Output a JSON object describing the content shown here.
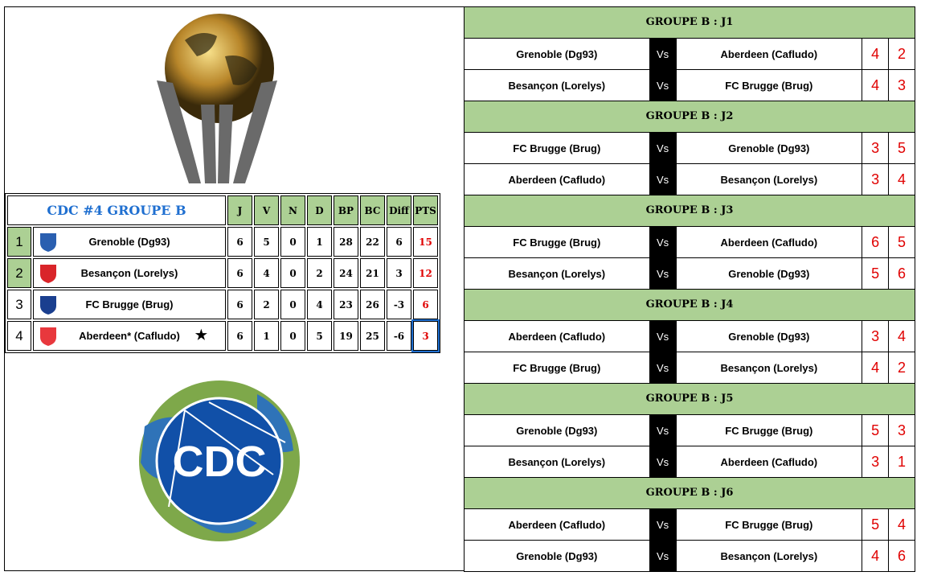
{
  "standings": {
    "title": "CDC #4 GROUPE B",
    "headers": [
      "J",
      "V",
      "N",
      "D",
      "BP",
      "BC",
      "Diff",
      "PTS"
    ],
    "rows": [
      {
        "rank": "1",
        "team": "Grenoble (Dg93)",
        "stats": [
          "6",
          "5",
          "0",
          "1",
          "28",
          "22",
          "6",
          "15"
        ],
        "qualified": true,
        "logo_color": "#2a5fb0"
      },
      {
        "rank": "2",
        "team": "Besançon (Lorelys)",
        "stats": [
          "6",
          "4",
          "0",
          "2",
          "24",
          "21",
          "3",
          "12"
        ],
        "qualified": true,
        "logo_color": "#d9252a"
      },
      {
        "rank": "3",
        "team": "FC Brugge (Brug)",
        "stats": [
          "6",
          "2",
          "0",
          "4",
          "23",
          "26",
          "-3",
          "6"
        ],
        "qualified": false,
        "logo_color": "#1a3f8f"
      },
      {
        "rank": "4",
        "team": "Aberdeen* (Cafludo)",
        "stats": [
          "6",
          "1",
          "0",
          "5",
          "19",
          "25",
          "-6",
          "3"
        ],
        "qualified": false,
        "logo_color": "#e8383d",
        "star": "★"
      }
    ]
  },
  "logo_text": "CDC",
  "matchdays": [
    {
      "title": "GROUPE B : J1",
      "matches": [
        {
          "home": "Grenoble (Dg93)",
          "away": "Aberdeen (Cafludo)",
          "hs": "4",
          "as": "2"
        },
        {
          "home": "Besançon (Lorelys)",
          "away": "FC Brugge (Brug)",
          "hs": "4",
          "as": "3"
        }
      ]
    },
    {
      "title": "GROUPE B : J2",
      "matches": [
        {
          "home": "FC Brugge (Brug)",
          "away": "Grenoble (Dg93)",
          "hs": "3",
          "as": "5"
        },
        {
          "home": "Aberdeen (Cafludo)",
          "away": "Besançon (Lorelys)",
          "hs": "3",
          "as": "4"
        }
      ]
    },
    {
      "title": "GROUPE B : J3",
      "matches": [
        {
          "home": "FC Brugge (Brug)",
          "away": "Aberdeen (Cafludo)",
          "hs": "6",
          "as": "5"
        },
        {
          "home": "Besançon (Lorelys)",
          "away": "Grenoble (Dg93)",
          "hs": "5",
          "as": "6"
        }
      ]
    },
    {
      "title": "GROUPE B : J4",
      "matches": [
        {
          "home": "Aberdeen (Cafludo)",
          "away": "Grenoble (Dg93)",
          "hs": "3",
          "as": "4"
        },
        {
          "home": "FC Brugge (Brug)",
          "away": "Besançon (Lorelys)",
          "hs": "4",
          "as": "2"
        }
      ]
    },
    {
      "title": "GROUPE B : J5",
      "matches": [
        {
          "home": "Grenoble (Dg93)",
          "away": "FC Brugge (Brug)",
          "hs": "5",
          "as": "3"
        },
        {
          "home": "Besançon (Lorelys)",
          "away": "Aberdeen (Cafludo)",
          "hs": "3",
          "as": "1"
        }
      ]
    },
    {
      "title": "GROUPE B : J6",
      "matches": [
        {
          "home": "Aberdeen (Cafludo)",
          "away": "FC Brugge (Brug)",
          "hs": "5",
          "as": "4"
        },
        {
          "home": "Grenoble (Dg93)",
          "away": "Besançon (Lorelys)",
          "hs": "4",
          "as": "6"
        }
      ]
    }
  ],
  "vs_label": "Vs",
  "colors": {
    "header_green": "#acd094",
    "score_red": "#e00000",
    "title_blue": "#1f6fd0"
  }
}
